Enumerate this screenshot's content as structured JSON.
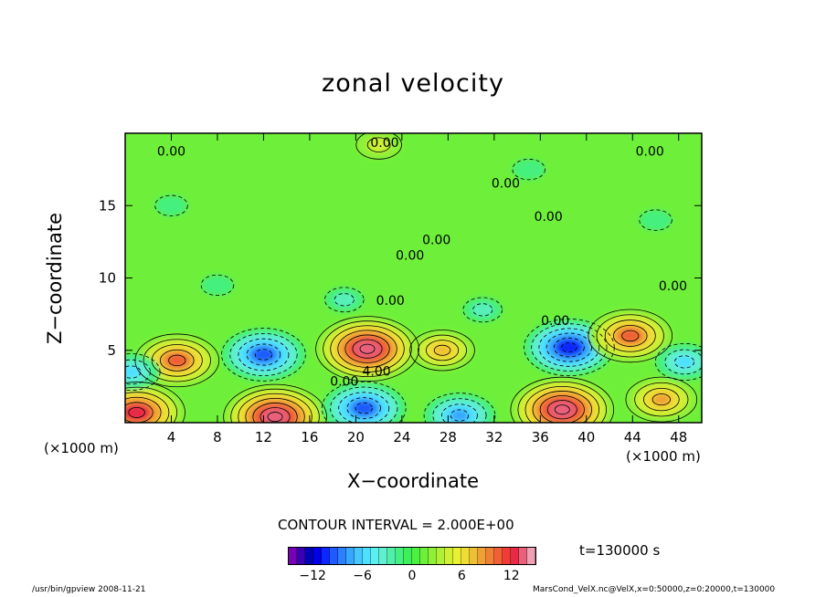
{
  "chart_data": {
    "type": "heatmap",
    "title": "zonal velocity",
    "xlabel": "X−coordinate",
    "ylabel": "Z−coordinate",
    "x_unit": "(×1000 m)",
    "x_ticks": [
      "4",
      "8",
      "12",
      "16",
      "20",
      "24",
      "28",
      "32",
      "36",
      "40",
      "44",
      "48"
    ],
    "y_ticks": [
      "5",
      "10",
      "15"
    ],
    "xlim": [
      0,
      50
    ],
    "ylim": [
      0,
      20
    ],
    "contour_interval": "CONTOUR INTERVAL = 2.000E+00",
    "time": "t=130000 s",
    "contour_labels": [
      {
        "text": "0.00",
        "x": 4,
        "y": 18.7
      },
      {
        "text": "0.00",
        "x": 22.5,
        "y": 19.3
      },
      {
        "text": "0.00",
        "x": 45.5,
        "y": 18.7
      },
      {
        "text": "0.00",
        "x": 33,
        "y": 16.5
      },
      {
        "text": "0.00",
        "x": 36.7,
        "y": 14.2
      },
      {
        "text": "0.00",
        "x": 27,
        "y": 12.6
      },
      {
        "text": "0.00",
        "x": 24.7,
        "y": 11.5
      },
      {
        "text": "0.00",
        "x": 47.5,
        "y": 9.4
      },
      {
        "text": "0.00",
        "x": 23,
        "y": 8.4
      },
      {
        "text": "0.00",
        "x": 37.3,
        "y": 7.0
      },
      {
        "text": "0.00",
        "x": 19,
        "y": 2.8
      },
      {
        "text": "4.00",
        "x": 21.8,
        "y": 3.5
      }
    ],
    "features": [
      {
        "x": 4.5,
        "z": 4.3,
        "value": 10
      },
      {
        "x": 12,
        "z": 4.7,
        "value": -10
      },
      {
        "x": 21,
        "z": 5.1,
        "value": 13
      },
      {
        "x": 27.5,
        "z": 5.0,
        "value": 7
      },
      {
        "x": 38.5,
        "z": 5.2,
        "value": -11
      },
      {
        "x": 43.8,
        "z": 6.0,
        "value": 10
      },
      {
        "x": 13,
        "z": 0.4,
        "value": 13
      },
      {
        "x": 20.7,
        "z": 1.0,
        "value": -10
      },
      {
        "x": 29,
        "z": 0.5,
        "value": -8
      },
      {
        "x": 37.9,
        "z": 0.9,
        "value": 13
      },
      {
        "x": 1,
        "z": 0.7,
        "value": 12
      },
      {
        "x": 46.5,
        "z": 1.6,
        "value": 8
      },
      {
        "x": 0.5,
        "z": 3.5,
        "value": -6
      },
      {
        "x": 48.5,
        "z": 4.2,
        "value": -6
      },
      {
        "x": 4,
        "z": 15,
        "value": -2
      },
      {
        "x": 19,
        "z": 8.5,
        "value": -3
      },
      {
        "x": 31,
        "z": 7.8,
        "value": -3
      },
      {
        "x": 8,
        "z": 9.5,
        "value": -2
      },
      {
        "x": 22,
        "z": 19.2,
        "value": 4
      },
      {
        "x": 46,
        "z": 14,
        "value": -2
      },
      {
        "x": 35,
        "z": 17.5,
        "value": -2
      }
    ],
    "colorbar": {
      "ticks": [
        "−12",
        "−6",
        "0",
        "6",
        "12"
      ],
      "tick_values": [
        -12,
        -6,
        0,
        6,
        12
      ],
      "range": [
        -15,
        15
      ],
      "colors": [
        "#7a00b4",
        "#3c00b4",
        "#0000b4",
        "#0000e6",
        "#0a28ff",
        "#1e5aff",
        "#2a80ff",
        "#38a6ff",
        "#46c8ff",
        "#50e0ff",
        "#5af0f0",
        "#60f0d0",
        "#50f0a8",
        "#44f07e",
        "#3cf058",
        "#4cf040",
        "#6ef03a",
        "#90f038",
        "#b0f036",
        "#d0f034",
        "#e8f034",
        "#f0dc34",
        "#f0c034",
        "#f0a034",
        "#f08034",
        "#f06034",
        "#f03c34",
        "#e82a46",
        "#e8607a",
        "#f0a0b4"
      ]
    }
  },
  "footer_left": "/usr/bin/gpview   2008-11-21",
  "footer_right": "MarsCond_VelX.nc@VelX,x=0:50000,z=0:20000,t=130000"
}
